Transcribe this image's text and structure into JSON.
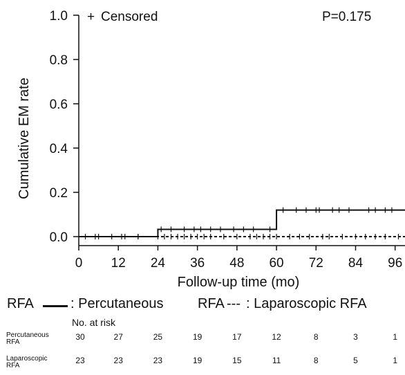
{
  "chart_data": {
    "type": "line",
    "subtype": "kaplan-meier-step",
    "title": "",
    "xlabel": "Follow-up time (mo)",
    "ylabel": "Cumulative EM rate",
    "xlim": [
      0,
      99
    ],
    "ylim": [
      0,
      1.0
    ],
    "xticks": [
      0,
      12,
      24,
      36,
      48,
      60,
      72,
      84,
      96
    ],
    "yticks": [
      "0.0",
      "0.2",
      "0.4",
      "0.6",
      "0.8",
      "1.0"
    ],
    "grid": false,
    "censor_marker": "+",
    "censor_label": "Censored",
    "censor_symbol_color": "#1f4e99",
    "p_value_text": "P=0.175",
    "series": [
      {
        "name": "Percutaneous RFA",
        "style": "solid",
        "color": "#111111",
        "steps": [
          {
            "x": 0,
            "y": 0.0
          },
          {
            "x": 24,
            "y": 0.033
          },
          {
            "x": 60,
            "y": 0.12
          },
          {
            "x": 99,
            "y": 0.12
          }
        ],
        "censored_x": [
          5,
          13,
          18,
          25,
          28,
          32,
          35,
          37,
          40,
          43,
          47,
          50,
          53,
          58,
          62,
          66,
          69,
          72,
          73,
          77,
          79,
          82,
          88,
          90,
          93,
          95
        ]
      },
      {
        "name": "Laparoscopic RFA",
        "style": "dashed",
        "color": "#111111",
        "steps": [
          {
            "x": 0,
            "y": 0.0
          },
          {
            "x": 99,
            "y": 0.0
          }
        ],
        "censored_x": [
          2,
          6,
          10,
          14,
          18,
          24,
          26,
          28,
          30,
          32,
          34,
          36,
          38,
          40,
          44,
          48,
          52,
          54,
          56,
          58,
          60,
          64,
          67,
          70,
          74,
          76,
          80,
          84,
          87,
          90,
          93,
          97
        ]
      }
    ],
    "legend": {
      "solid_label_prefix": "RFA",
      "solid_label": "Percutaneous RFA",
      "dashed_label_prefix": "RFA",
      "dashed_label": "Laparoscopic RFA",
      "dash_text": "---",
      "colon": ":",
      "solid_text": ": Percutaneous",
      "dashed_text": ": Laparoscopic RFA"
    },
    "risk_table": {
      "title": "No. at risk",
      "times": [
        0,
        12,
        24,
        36,
        48,
        60,
        72,
        84,
        96
      ],
      "rows": [
        {
          "label_line1": "Percutaneous",
          "label_line2": "RFA",
          "values": [
            30,
            27,
            25,
            19,
            17,
            12,
            8,
            3,
            1
          ]
        },
        {
          "label_line1": "Laparoscopic",
          "label_line2": "RFA",
          "values": [
            23,
            23,
            23,
            19,
            15,
            11,
            8,
            5,
            1
          ]
        }
      ]
    }
  }
}
